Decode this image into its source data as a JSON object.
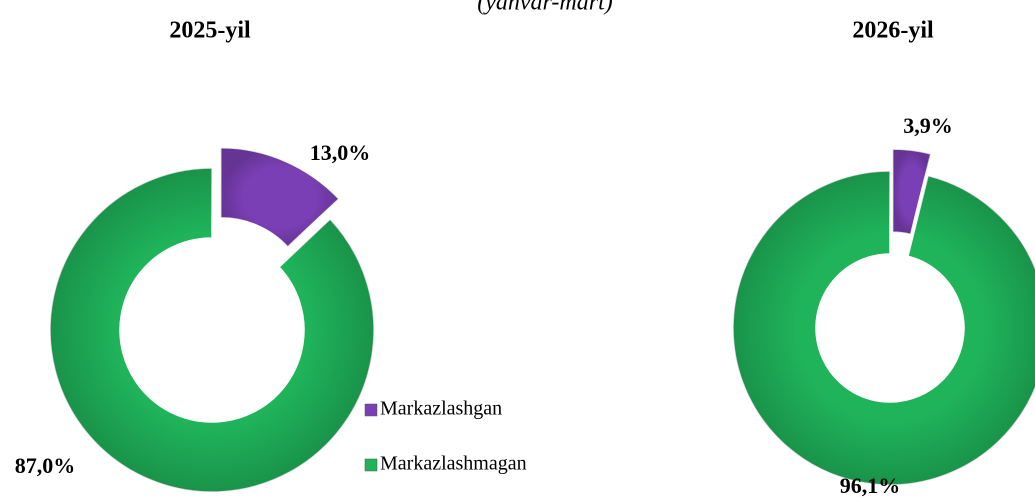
{
  "header": {
    "subtitle": "(yanvar-mart)"
  },
  "chart_data": [
    {
      "type": "pie",
      "donut": true,
      "title": "2025-yil",
      "categories": [
        "Markazlashgan",
        "Markazlashmagan"
      ],
      "values": [
        13.0,
        87.0
      ],
      "value_labels": [
        "13,0%",
        "87,0%"
      ],
      "colors": [
        "#7b3fb5",
        "#1fb35a"
      ],
      "legend": "right"
    },
    {
      "type": "pie",
      "donut": true,
      "title": "2026-yil",
      "categories": [
        "Markazlashgan",
        "Markazlashmagan"
      ],
      "values": [
        3.9,
        96.1
      ],
      "value_labels": [
        "3,9%",
        "96,1%"
      ],
      "colors": [
        "#7b3fb5",
        "#1fb35a"
      ]
    }
  ]
}
